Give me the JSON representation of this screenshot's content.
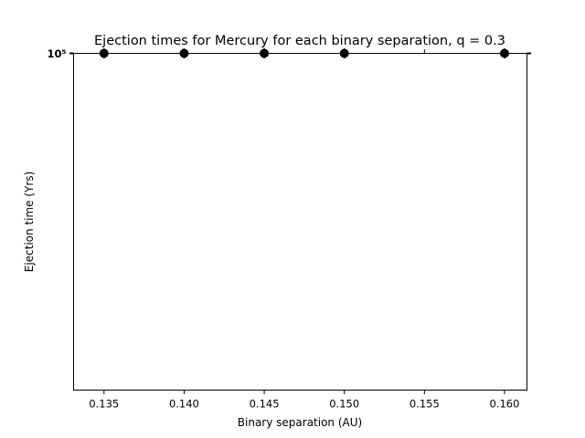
{
  "chart_data": {
    "type": "scatter",
    "title": "Ejection times for Mercury for each binary separation, q = 0.3",
    "xlabel": "Binary separation (AU)",
    "ylabel": "Ejection time (Yrs)",
    "xlim": [
      0.1331,
      0.1614
    ],
    "x_ticks": [
      0.135,
      0.14,
      0.145,
      0.15,
      0.155,
      0.16
    ],
    "x_tick_labels": [
      "0.135",
      "0.140",
      "0.145",
      "0.150",
      "0.155",
      "0.160"
    ],
    "y_scale": "log",
    "y_tick_label": "10⁵",
    "grid": false,
    "series": [
      {
        "x": [
          0.135,
          0.14,
          0.145,
          0.15,
          0.16
        ],
        "y": [
          100000,
          100000,
          100000,
          100000,
          100000
        ]
      }
    ]
  }
}
